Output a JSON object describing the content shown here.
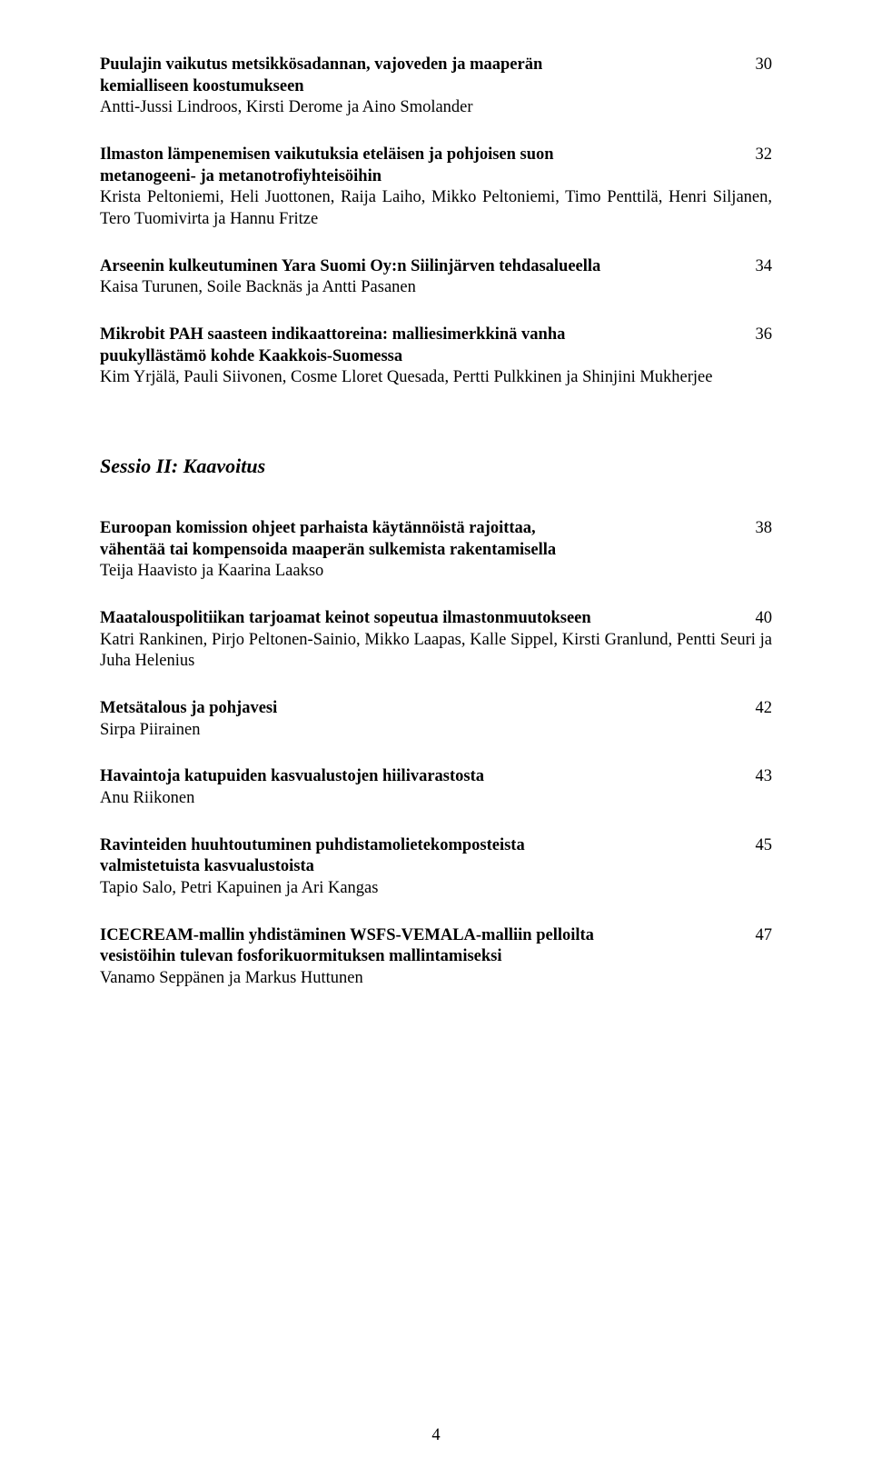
{
  "entries_top": [
    {
      "title_lines": [
        "Puulajin vaikutus metsikkösadannan, vajoveden ja maaperän",
        "kemialliseen koostumukseen"
      ],
      "page": "30",
      "authors": "Antti-Jussi Lindroos, Kirsti Derome ja Aino Smolander"
    },
    {
      "title_lines": [
        "Ilmaston lämpenemisen vaikutuksia eteläisen ja pohjoisen suon",
        "metanogeeni- ja metanotrofiyhteisöihin"
      ],
      "page": "32",
      "authors": "Krista Peltoniemi, Heli Juottonen, Raija Laiho, Mikko Peltoniemi, Timo Penttilä, Henri Siljanen, Tero Tuomivirta ja Hannu Fritze"
    },
    {
      "title_lines": [
        "Arseenin kulkeutuminen Yara Suomi Oy:n Siilinjärven tehdasalueella"
      ],
      "page": "34",
      "authors": "Kaisa Turunen, Soile Backnäs ja Antti Pasanen"
    },
    {
      "title_lines": [
        "Mikrobit PAH saasteen indikaattoreina: malliesimerkkinä vanha",
        "puukyllästämö kohde Kaakkois-Suomessa"
      ],
      "page": "36",
      "authors": "Kim Yrjälä, Pauli Siivonen, Cosme Lloret Quesada, Pertti Pulkkinen ja Shinjini Mukherjee"
    }
  ],
  "session_title": "Sessio II: Kaavoitus",
  "entries_bottom": [
    {
      "title_lines": [
        "Euroopan komission ohjeet parhaista käytännöistä rajoittaa,",
        "vähentää tai kompensoida maaperän sulkemista rakentamisella"
      ],
      "page": "38",
      "authors": "Teija Haavisto ja Kaarina Laakso"
    },
    {
      "title_lines": [
        "Maatalouspolitiikan tarjoamat keinot sopeutua ilmastonmuutokseen"
      ],
      "page": "40",
      "authors": "Katri Rankinen, Pirjo Peltonen-Sainio, Mikko Laapas, Kalle Sippel, Kirsti Granlund, Pentti Seuri ja Juha Helenius"
    },
    {
      "title_lines": [
        "Metsätalous ja pohjavesi"
      ],
      "page": "42",
      "authors": "Sirpa Piirainen"
    },
    {
      "title_lines": [
        "Havaintoja katupuiden kasvualustojen hiilivarastosta"
      ],
      "page": "43",
      "authors": "Anu Riikonen"
    },
    {
      "title_lines": [
        "Ravinteiden huuhtoutuminen puhdistamolietekomposteista",
        "valmistetuista kasvualustoista"
      ],
      "page": "45",
      "authors": "Tapio Salo, Petri Kapuinen ja Ari Kangas"
    },
    {
      "title_lines": [
        "ICECREAM-mallin yhdistäminen WSFS-VEMALA-malliin pelloilta",
        "vesistöihin tulevan fosforikuormituksen mallintamiseksi"
      ],
      "page": "47",
      "authors": "Vanamo Seppänen ja Markus Huttunen"
    }
  ],
  "page_number": "4"
}
